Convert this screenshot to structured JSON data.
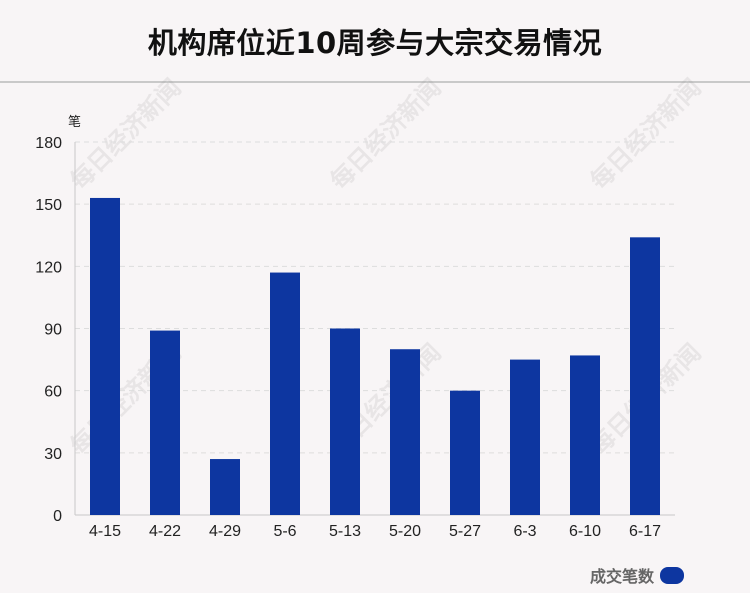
{
  "title": "机构席位近10周参与大宗交易情况",
  "watermark": "每日经济新闻",
  "legend": {
    "label": "成交笔数"
  },
  "colors": {
    "bar": "#0d36a0",
    "grid": "#dddddd",
    "axis": "#c8c8c8",
    "text": "#222222"
  },
  "chart_data": {
    "type": "bar",
    "title": "机构席位近10周参与大宗交易情况",
    "ylabel": "笔",
    "xlabel": "",
    "ylim": [
      0,
      180
    ],
    "yticks": [
      0,
      30,
      60,
      90,
      120,
      150,
      180
    ],
    "categories": [
      "4-15",
      "4-22",
      "4-29",
      "5-6",
      "5-13",
      "5-20",
      "5-27",
      "6-3",
      "6-10",
      "6-17"
    ],
    "series": [
      {
        "name": "成交笔数",
        "values": [
          153,
          89,
          27,
          117,
          90,
          80,
          60,
          75,
          77,
          134
        ]
      }
    ],
    "grid": true,
    "legend_position": "bottom-right"
  }
}
